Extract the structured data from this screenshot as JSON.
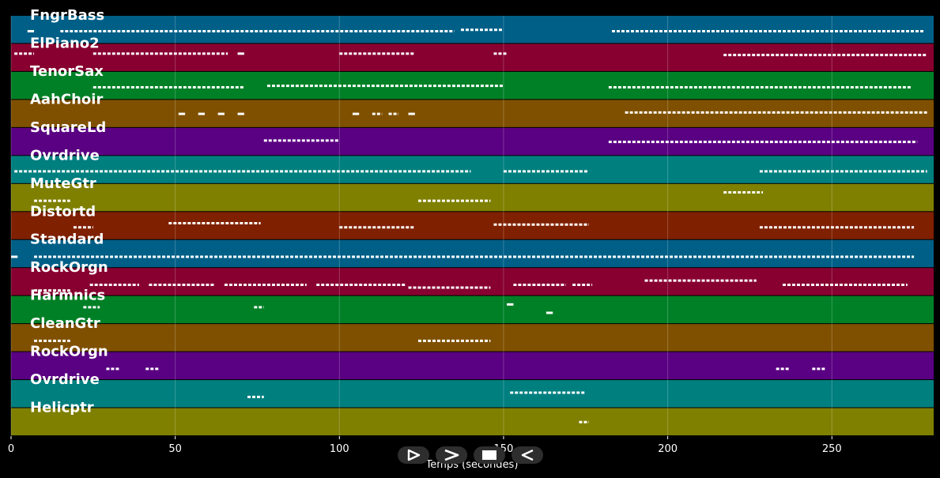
{
  "chart_data": {
    "type": "piano-roll",
    "xlabel": "Temps (secondes)",
    "xlim": [
      0,
      281
    ],
    "xticks": [
      0,
      50,
      100,
      150,
      200,
      250
    ],
    "tracks": [
      {
        "name": "FngrBass",
        "color": "#005f87",
        "notes": [
          [
            5,
            7,
            0.55
          ],
          [
            15,
            135,
            0.55
          ],
          [
            137,
            150,
            0.5
          ],
          [
            183,
            278,
            0.55
          ]
        ]
      },
      {
        "name": "ElPiano2",
        "color": "#870030",
        "notes": [
          [
            1,
            7,
            0.35
          ],
          [
            25,
            66,
            0.35
          ],
          [
            69,
            71,
            0.35
          ],
          [
            100,
            123,
            0.35
          ],
          [
            147,
            151,
            0.35
          ],
          [
            217,
            279,
            0.4
          ]
        ]
      },
      {
        "name": "TenorSax",
        "color": "#008026",
        "notes": [
          [
            25,
            71,
            0.55
          ],
          [
            78,
            150,
            0.5
          ],
          [
            182,
            274,
            0.55
          ]
        ]
      },
      {
        "name": "AahChoir",
        "color": "#7f5000",
        "notes": [
          [
            51,
            53,
            0.5
          ],
          [
            57,
            59,
            0.5
          ],
          [
            63,
            65,
            0.5
          ],
          [
            69,
            71,
            0.5
          ],
          [
            104,
            106,
            0.5
          ],
          [
            110,
            113,
            0.5
          ],
          [
            115,
            118,
            0.5
          ],
          [
            121,
            123,
            0.5
          ],
          [
            187,
            279,
            0.45
          ]
        ]
      },
      {
        "name": "SquareLd",
        "color": "#5a0082",
        "notes": [
          [
            77,
            100,
            0.45
          ],
          [
            182,
            276,
            0.5
          ]
        ]
      },
      {
        "name": "Ovrdrive",
        "color": "#007f7f",
        "notes": [
          [
            1,
            140,
            0.55
          ],
          [
            150,
            176,
            0.55
          ],
          [
            228,
            279,
            0.55
          ]
        ]
      },
      {
        "name": "MuteGtr",
        "color": "#7f8000",
        "notes": [
          [
            7,
            18,
            0.6
          ],
          [
            124,
            146,
            0.6
          ],
          [
            217,
            229,
            0.3
          ]
        ]
      },
      {
        "name": "Distortd",
        "color": "#7f2000",
        "notes": [
          [
            19,
            25,
            0.55
          ],
          [
            48,
            76,
            0.4
          ],
          [
            100,
            123,
            0.55
          ],
          [
            147,
            176,
            0.45
          ],
          [
            228,
            275,
            0.55
          ]
        ]
      },
      {
        "name": "Standard",
        "color": "#005f87",
        "notes": [
          [
            0,
            2,
            0.6
          ],
          [
            7,
            275,
            0.6
          ]
        ]
      },
      {
        "name": "RockOrgn",
        "color": "#870030",
        "notes": [
          [
            7,
            18,
            0.8
          ],
          [
            24,
            39,
            0.6
          ],
          [
            42,
            62,
            0.6
          ],
          [
            65,
            90,
            0.6
          ],
          [
            93,
            120,
            0.6
          ],
          [
            121,
            146,
            0.7
          ],
          [
            153,
            169,
            0.6
          ],
          [
            171,
            177,
            0.6
          ],
          [
            193,
            227,
            0.45
          ],
          [
            235,
            273,
            0.6
          ]
        ]
      },
      {
        "name": "Harmnics",
        "color": "#008026",
        "notes": [
          [
            22,
            27,
            0.4
          ],
          [
            74,
            77,
            0.4
          ],
          [
            151,
            153,
            0.3
          ],
          [
            163,
            165,
            0.6
          ]
        ]
      },
      {
        "name": "CleanGtr",
        "color": "#7f5000",
        "notes": [
          [
            7,
            18,
            0.6
          ],
          [
            124,
            146,
            0.6
          ]
        ]
      },
      {
        "name": "RockOrgn",
        "color": "#5a0082",
        "notes": [
          [
            29,
            33,
            0.6
          ],
          [
            41,
            45,
            0.6
          ],
          [
            233,
            237,
            0.6
          ],
          [
            244,
            248,
            0.6
          ]
        ]
      },
      {
        "name": "Ovrdrive",
        "color": "#007f7f",
        "notes": [
          [
            72,
            77,
            0.6
          ],
          [
            152,
            175,
            0.45
          ]
        ]
      },
      {
        "name": "Helicptr",
        "color": "#7f8000",
        "notes": [
          [
            173,
            176,
            0.5
          ]
        ]
      }
    ]
  },
  "controls": {
    "play_label": "play",
    "forward_label": "forward",
    "stop_label": "stop",
    "back_label": "back"
  }
}
